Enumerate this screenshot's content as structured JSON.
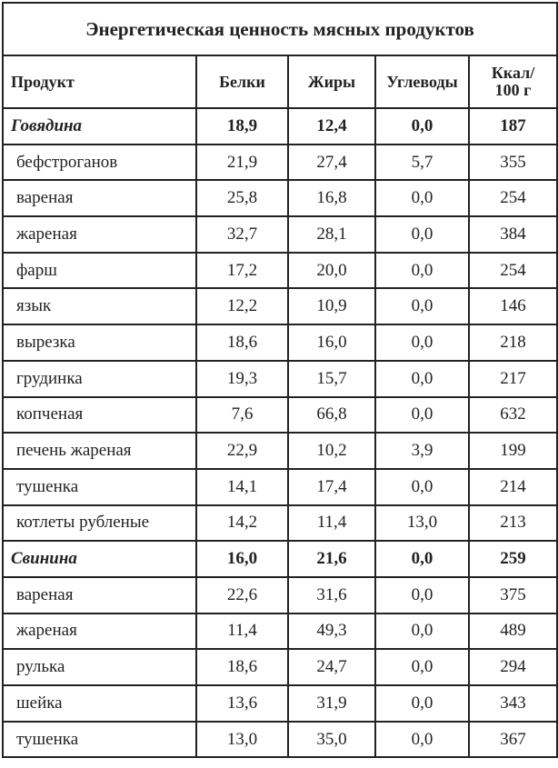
{
  "title": "Энергетическая ценность мясных продуктов",
  "columns": [
    "Продукт",
    "Белки",
    "Жиры",
    "Углеводы",
    "Ккал/\n100 г"
  ],
  "rows": [
    {
      "group": true,
      "name": "Говядина",
      "protein": "18,9",
      "fat": "12,4",
      "carbs": "0,0",
      "kcal": "187"
    },
    {
      "group": false,
      "name": "бефстроганов",
      "protein": "21,9",
      "fat": "27,4",
      "carbs": "5,7",
      "kcal": "355"
    },
    {
      "group": false,
      "name": "вареная",
      "protein": "25,8",
      "fat": "16,8",
      "carbs": "0,0",
      "kcal": "254"
    },
    {
      "group": false,
      "name": "жареная",
      "protein": "32,7",
      "fat": "28,1",
      "carbs": "0,0",
      "kcal": "384"
    },
    {
      "group": false,
      "name": "фарш",
      "protein": "17,2",
      "fat": "20,0",
      "carbs": "0,0",
      "kcal": "254"
    },
    {
      "group": false,
      "name": "язык",
      "protein": "12,2",
      "fat": "10,9",
      "carbs": "0,0",
      "kcal": "146"
    },
    {
      "group": false,
      "name": "вырезка",
      "protein": "18,6",
      "fat": "16,0",
      "carbs": "0,0",
      "kcal": "218"
    },
    {
      "group": false,
      "name": "грудинка",
      "protein": "19,3",
      "fat": "15,7",
      "carbs": "0,0",
      "kcal": "217"
    },
    {
      "group": false,
      "name": "копченая",
      "protein": "7,6",
      "fat": "66,8",
      "carbs": "0,0",
      "kcal": "632"
    },
    {
      "group": false,
      "name": "печень жареная",
      "protein": "22,9",
      "fat": "10,2",
      "carbs": "3,9",
      "kcal": "199"
    },
    {
      "group": false,
      "name": "тушенка",
      "protein": "14,1",
      "fat": "17,4",
      "carbs": "0,0",
      "kcal": "214"
    },
    {
      "group": false,
      "name": "котлеты рубленые",
      "protein": "14,2",
      "fat": "11,4",
      "carbs": "13,0",
      "kcal": "213"
    },
    {
      "group": true,
      "name": "Свинина",
      "protein": "16,0",
      "fat": "21,6",
      "carbs": "0,0",
      "kcal": "259"
    },
    {
      "group": false,
      "name": "вареная",
      "protein": "22,6",
      "fat": "31,6",
      "carbs": "0,0",
      "kcal": "375"
    },
    {
      "group": false,
      "name": "жареная",
      "protein": "11,4",
      "fat": "49,3",
      "carbs": "0,0",
      "kcal": "489"
    },
    {
      "group": false,
      "name": "рулька",
      "protein": "18,6",
      "fat": "24,7",
      "carbs": "0,0",
      "kcal": "294"
    },
    {
      "group": false,
      "name": "шейка",
      "protein": "13,6",
      "fat": "31,9",
      "carbs": "0,0",
      "kcal": "343"
    },
    {
      "group": false,
      "name": "тушенка",
      "protein": "13,0",
      "fat": "35,0",
      "carbs": "0,0",
      "kcal": "367"
    }
  ]
}
